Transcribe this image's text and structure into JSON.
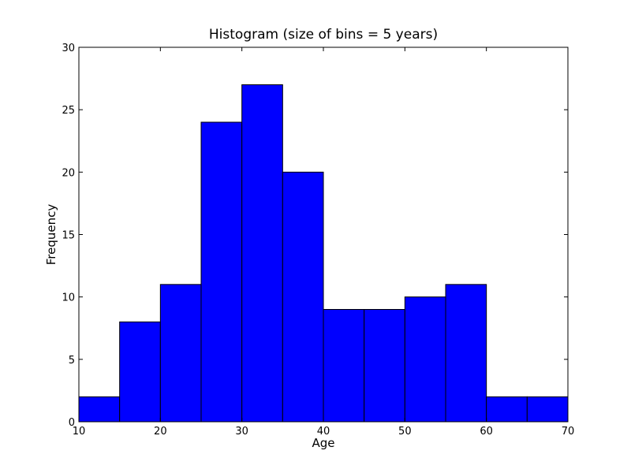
{
  "chart_data": {
    "type": "bar",
    "title": "Histogram (size of bins = 5 years)",
    "xlabel": "Age",
    "ylabel": "Frequency",
    "xlim": [
      10,
      70
    ],
    "ylim": [
      0,
      30
    ],
    "xticks": [
      10,
      20,
      30,
      40,
      50,
      60,
      70
    ],
    "yticks": [
      0,
      5,
      10,
      15,
      20,
      25,
      30
    ],
    "grid": false,
    "bar_color": "#0000ff",
    "edge_color": "#000000",
    "bins": [
      {
        "start": 10,
        "end": 15,
        "value": 2
      },
      {
        "start": 15,
        "end": 20,
        "value": 8
      },
      {
        "start": 20,
        "end": 25,
        "value": 11
      },
      {
        "start": 25,
        "end": 30,
        "value": 24
      },
      {
        "start": 30,
        "end": 35,
        "value": 27
      },
      {
        "start": 35,
        "end": 40,
        "value": 20
      },
      {
        "start": 40,
        "end": 45,
        "value": 9
      },
      {
        "start": 45,
        "end": 50,
        "value": 9
      },
      {
        "start": 50,
        "end": 55,
        "value": 10
      },
      {
        "start": 55,
        "end": 60,
        "value": 11
      },
      {
        "start": 60,
        "end": 65,
        "value": 2
      },
      {
        "start": 65,
        "end": 70,
        "value": 2
      }
    ]
  }
}
